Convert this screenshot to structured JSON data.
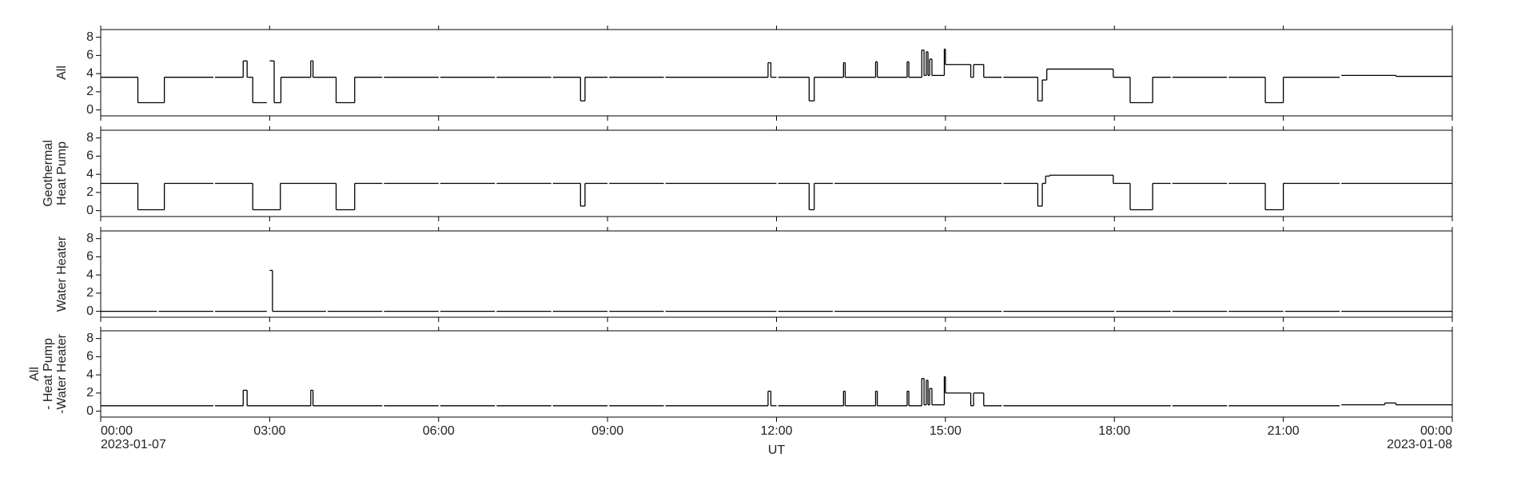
{
  "chart_data": [
    {
      "type": "line",
      "drawstyle": "steps-post",
      "ylabel": [
        "All"
      ],
      "ylim": [
        -0.65,
        8.85
      ],
      "yticks": [
        0,
        2,
        4,
        6,
        8
      ],
      "xlim": [
        0,
        24
      ],
      "xticks": [
        0,
        3,
        6,
        9,
        12,
        15,
        18,
        21,
        24
      ],
      "x": [
        0,
        0.66,
        1.13,
        2.0,
        2.03,
        2.53,
        2.6,
        2.7,
        2.95,
        3.0,
        3.08,
        3.2,
        3.73,
        3.77,
        4.18,
        4.51,
        5.0,
        5.03,
        6.0,
        6.03,
        7.0,
        7.03,
        8.0,
        8.03,
        8.52,
        8.6,
        9.0,
        9.03,
        10.0,
        10.03,
        11.85,
        11.9,
        12.0,
        12.03,
        12.58,
        12.67,
        13.19,
        13.22,
        13.76,
        13.79,
        14.32,
        14.35,
        14.58,
        14.62,
        14.66,
        14.69,
        14.72,
        14.76,
        14.98,
        15.0,
        15.45,
        15.5,
        15.68,
        16.0,
        16.03,
        16.64,
        16.72,
        16.8,
        17.98,
        18.28,
        18.68,
        19.0,
        19.03,
        20.0,
        20.03,
        20.68,
        21.0,
        22.0,
        22.03,
        23.0,
        24.0
      ],
      "series": [
        {
          "color": "#000000",
          "values": [
            3.6,
            0.8,
            3.6,
            null,
            3.6,
            5.4,
            3.6,
            0.8,
            null,
            5.4,
            0.8,
            3.6,
            5.4,
            3.6,
            0.8,
            3.6,
            null,
            3.6,
            null,
            3.6,
            null,
            3.6,
            null,
            3.6,
            1.0,
            3.6,
            null,
            3.6,
            null,
            3.6,
            5.2,
            3.6,
            null,
            3.6,
            1.0,
            3.6,
            5.2,
            3.6,
            5.3,
            3.6,
            5.3,
            3.6,
            6.6,
            3.8,
            6.4,
            3.8,
            5.6,
            3.8,
            6.7,
            5.0,
            3.6,
            5.0,
            3.6,
            null,
            3.6,
            1.0,
            3.3,
            4.5,
            3.6,
            0.8,
            3.6,
            null,
            3.6,
            null,
            3.6,
            0.8,
            3.6,
            null,
            3.8,
            3.7,
            3.7
          ]
        }
      ]
    },
    {
      "type": "line",
      "drawstyle": "steps-post",
      "ylabel": [
        "Geothermal",
        "Heat Pump"
      ],
      "ylim": [
        -0.65,
        8.85
      ],
      "yticks": [
        0,
        2,
        4,
        6,
        8
      ],
      "xlim": [
        0,
        24
      ],
      "xticks": [
        0,
        3,
        6,
        9,
        12,
        15,
        18,
        21,
        24
      ],
      "x": [
        0,
        0.66,
        1.13,
        2.0,
        2.03,
        2.7,
        3.19,
        4.18,
        4.51,
        5.0,
        5.03,
        6.0,
        6.03,
        7.0,
        7.03,
        8.0,
        8.03,
        8.52,
        8.6,
        9.0,
        9.03,
        10.0,
        10.03,
        12.0,
        12.03,
        12.58,
        12.67,
        13.0,
        13.03,
        16.0,
        16.03,
        16.64,
        16.72,
        16.78,
        16.85,
        17.98,
        18.28,
        18.68,
        19.0,
        19.03,
        20.0,
        20.03,
        20.68,
        21.0,
        22.0,
        22.03,
        24.0
      ],
      "series": [
        {
          "color": "#000000",
          "values": [
            3.0,
            0.1,
            3.0,
            null,
            3.0,
            0.1,
            3.0,
            0.1,
            3.0,
            null,
            3.0,
            null,
            3.0,
            null,
            3.0,
            null,
            3.0,
            0.5,
            3.0,
            null,
            3.0,
            null,
            3.0,
            null,
            3.0,
            0.1,
            3.0,
            null,
            3.0,
            null,
            3.0,
            0.5,
            3.0,
            3.8,
            3.9,
            3.0,
            0.1,
            3.0,
            null,
            3.0,
            null,
            3.0,
            0.1,
            3.0,
            null,
            3.0,
            3.0
          ]
        }
      ]
    },
    {
      "type": "line",
      "drawstyle": "steps-post",
      "ylabel": [
        "Water Heater"
      ],
      "ylim": [
        -0.65,
        8.85
      ],
      "yticks": [
        0,
        2,
        4,
        6,
        8
      ],
      "xlim": [
        0,
        24
      ],
      "xticks": [
        0,
        3,
        6,
        9,
        12,
        15,
        18,
        21,
        24
      ],
      "x": [
        0,
        1.0,
        1.03,
        2.0,
        2.03,
        2.95,
        3.0,
        3.05,
        4.0,
        4.03,
        5.0,
        5.03,
        6.0,
        6.03,
        7.0,
        7.03,
        8.0,
        8.03,
        9.0,
        9.03,
        10.0,
        10.03,
        12.0,
        12.03,
        13.0,
        13.03,
        16.0,
        16.03,
        18.0,
        18.03,
        19.0,
        19.03,
        20.0,
        20.03,
        21.0,
        21.03,
        22.0,
        22.03,
        24.0
      ],
      "series": [
        {
          "color": "#000000",
          "values": [
            0,
            null,
            0,
            null,
            0,
            null,
            4.5,
            0,
            null,
            0,
            null,
            0,
            null,
            0,
            null,
            0,
            null,
            0,
            null,
            0,
            null,
            0,
            null,
            0,
            null,
            0,
            null,
            0,
            null,
            0,
            null,
            0,
            null,
            0,
            null,
            0,
            null,
            0,
            0
          ]
        }
      ]
    },
    {
      "type": "line",
      "drawstyle": "steps-post",
      "ylabel": [
        "All",
        "- Heat Pump",
        "-Water Heater"
      ],
      "xlabel": "UT",
      "ylim": [
        -0.65,
        8.85
      ],
      "yticks": [
        0,
        2,
        4,
        6,
        8
      ],
      "xlim": [
        0,
        24
      ],
      "xticks": [
        {
          "value": 0,
          "label": "00:00"
        },
        {
          "value": 3,
          "label": "03:00"
        },
        {
          "value": 6,
          "label": "06:00"
        },
        {
          "value": 9,
          "label": "09:00"
        },
        {
          "value": 12,
          "label": "12:00"
        },
        {
          "value": 15,
          "label": "15:00"
        },
        {
          "value": 18,
          "label": "18:00"
        },
        {
          "value": 21,
          "label": "21:00"
        },
        {
          "value": 24,
          "label": "00:00"
        }
      ],
      "date_labels": [
        {
          "value": 0,
          "label": "2023-01-07"
        },
        {
          "value": 24,
          "label": "2023-01-08"
        }
      ],
      "x": [
        0,
        2.0,
        2.03,
        2.53,
        2.6,
        3.73,
        3.77,
        5.0,
        5.03,
        6.0,
        6.03,
        7.0,
        7.03,
        8.0,
        8.03,
        9.0,
        9.03,
        10.0,
        10.03,
        11.85,
        11.9,
        12.0,
        12.03,
        13.19,
        13.22,
        13.76,
        13.79,
        14.32,
        14.35,
        14.58,
        14.62,
        14.66,
        14.69,
        14.72,
        14.76,
        14.98,
        15.0,
        15.45,
        15.5,
        15.68,
        16.0,
        16.03,
        19.0,
        19.03,
        20.0,
        20.03,
        22.0,
        22.03,
        22.8,
        23.0,
        24.0
      ],
      "series": [
        {
          "color": "#000000",
          "values": [
            0.6,
            null,
            0.6,
            2.3,
            0.6,
            2.3,
            0.6,
            null,
            0.6,
            null,
            0.6,
            null,
            0.6,
            null,
            0.6,
            null,
            0.6,
            null,
            0.6,
            2.2,
            0.6,
            null,
            0.6,
            2.2,
            0.6,
            2.2,
            0.6,
            2.2,
            0.6,
            3.6,
            0.7,
            3.4,
            0.7,
            2.5,
            0.7,
            3.8,
            2.0,
            0.6,
            2.0,
            0.6,
            null,
            0.6,
            null,
            0.6,
            null,
            0.6,
            null,
            0.7,
            0.9,
            0.7,
            0.7
          ]
        }
      ]
    }
  ]
}
